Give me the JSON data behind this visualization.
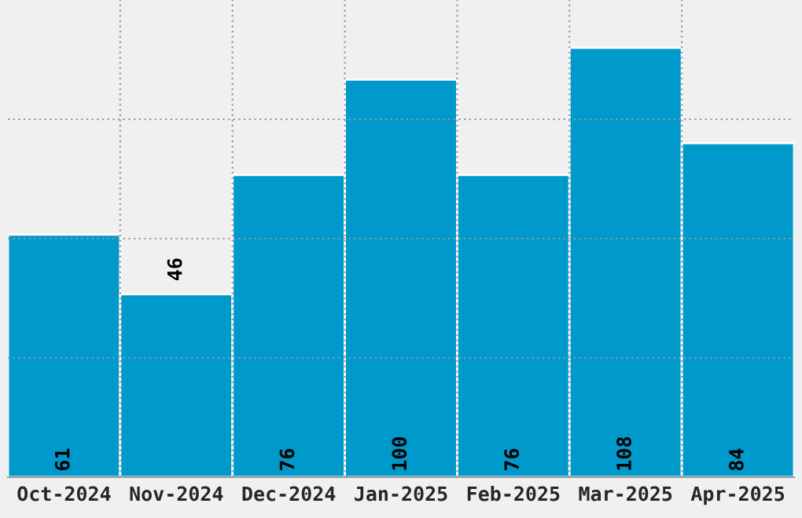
{
  "chart_data": {
    "type": "bar",
    "categories": [
      "Oct-2024",
      "Nov-2024",
      "Dec-2024",
      "Jan-2025",
      "Feb-2025",
      "Mar-2025",
      "Apr-2025"
    ],
    "values": [
      61,
      46,
      76,
      100,
      76,
      108,
      84
    ],
    "color": "#0099cc",
    "value_labels": [
      "61",
      null,
      "76",
      "100",
      "76",
      "108",
      "84"
    ],
    "annotations": [
      {
        "text": "46",
        "x": "Nov-2024",
        "y": 46
      }
    ],
    "ylim": [
      0,
      120
    ],
    "yticks": [
      {
        "value": 30,
        "label": null
      },
      {
        "value": 60,
        "label": null
      },
      {
        "value": 90,
        "label": null
      }
    ],
    "grid": true,
    "tick_labels": "x"
  }
}
